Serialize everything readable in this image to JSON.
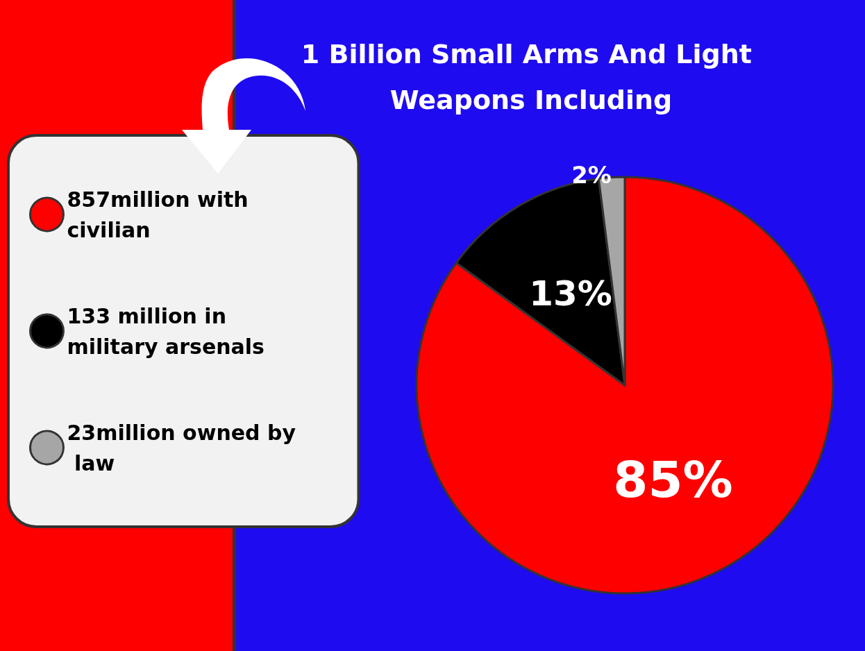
{
  "chart_data": {
    "type": "pie",
    "title": "1 Billion Small Arms And Light Weapons Including",
    "categories": [
      "857million with civilian",
      "133 million in military arsenals",
      "23million owned by law"
    ],
    "values": [
      85,
      13,
      2
    ],
    "colors": [
      "#ff0000",
      "#000000",
      "#a6a6a6"
    ],
    "value_labels": [
      "85%",
      "13%",
      "2%"
    ],
    "legend": "left"
  }
}
